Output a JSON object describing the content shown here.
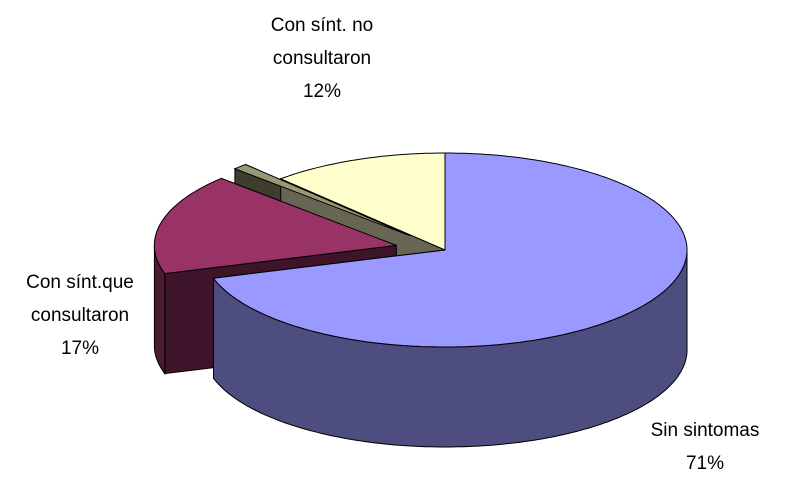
{
  "chart_data": {
    "type": "pie",
    "three_d": true,
    "categories": [
      "Sin sintomas",
      "Con sínt.que consultaron",
      null,
      "Con sínt. no consultaron"
    ],
    "values": [
      71,
      17,
      1,
      12
    ],
    "value_labels": [
      "71%",
      "17%",
      null,
      "12%"
    ],
    "colors": [
      "#9999ff",
      "#993366",
      "#999977",
      "#ffffcc"
    ]
  }
}
